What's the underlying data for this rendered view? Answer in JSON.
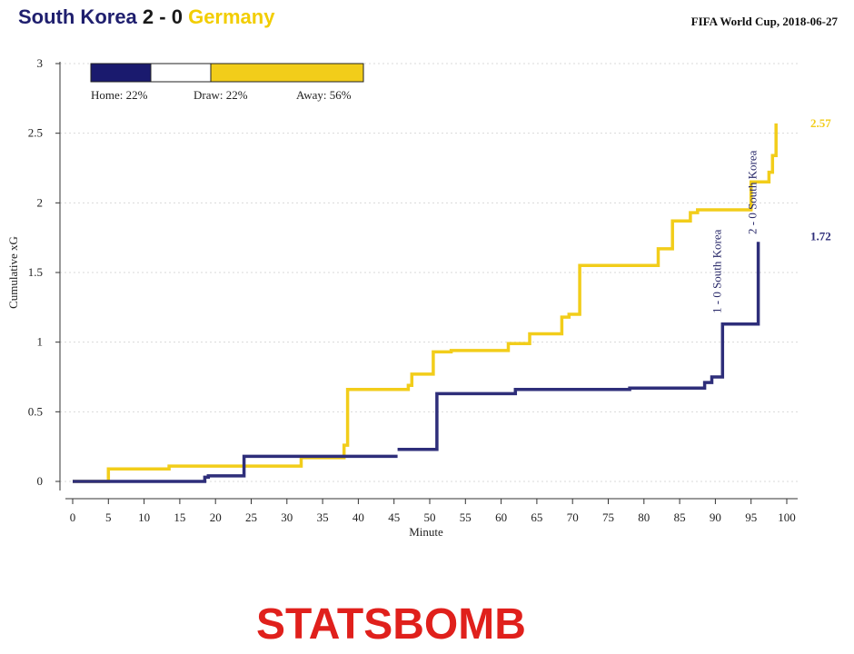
{
  "header": {
    "home_team": "South Korea",
    "score": "2 - 0",
    "away_team": "Germany",
    "competition": "FIFA World Cup, 2018-06-27"
  },
  "colors": {
    "home": "#2e2e7a",
    "away": "#f2cd1a",
    "grid": "#d9d9d9",
    "logo": "#e0201c"
  },
  "legend": {
    "home_label": "Home: 22%",
    "draw_label": "Draw: 22%",
    "away_label": "Away: 56%",
    "home_pct": 22,
    "draw_pct": 22,
    "away_pct": 56
  },
  "chart_data": {
    "type": "line",
    "xlabel": "Minute",
    "ylabel": "Cumulative xG",
    "xlim": [
      0,
      100
    ],
    "ylim": [
      0,
      3
    ],
    "xticks": [
      "0",
      "5",
      "10",
      "15",
      "20",
      "25",
      "30",
      "35",
      "40",
      "45",
      "50",
      "55",
      "60",
      "65",
      "70",
      "75",
      "80",
      "85",
      "90",
      "95",
      "100"
    ],
    "yticks": [
      "0",
      "0.5",
      "1",
      "1.5",
      "2",
      "2.5",
      "3"
    ],
    "grid": "horizontal dotted",
    "series": [
      {
        "name": "South Korea",
        "final_label": "1.72",
        "segments": [
          [
            [
              0,
              0
            ],
            [
              5.5,
              0
            ],
            [
              18.5,
              0
            ],
            [
              18.5,
              0.03
            ],
            [
              19,
              0.03
            ],
            [
              19,
              0.04
            ],
            [
              24,
              0.04
            ],
            [
              24,
              0.18
            ],
            [
              45.5,
              0.18
            ]
          ],
          [
            [
              45.5,
              0.23
            ],
            [
              51,
              0.23
            ],
            [
              51,
              0.63
            ],
            [
              62,
              0.63
            ],
            [
              62,
              0.66
            ],
            [
              78,
              0.66
            ],
            [
              78,
              0.67
            ],
            [
              88.5,
              0.67
            ],
            [
              88.5,
              0.71
            ],
            [
              89.5,
              0.71
            ],
            [
              89.5,
              0.75
            ],
            [
              91,
              0.75
            ],
            [
              91,
              1.13
            ],
            [
              96,
              1.13
            ],
            [
              96,
              1.72
            ]
          ]
        ]
      },
      {
        "name": "Germany",
        "final_label": "2.57",
        "segments": [
          [
            [
              0,
              0
            ],
            [
              5,
              0
            ],
            [
              5,
              0.09
            ],
            [
              13.5,
              0.09
            ],
            [
              13.5,
              0.11
            ],
            [
              32,
              0.11
            ],
            [
              32,
              0.17
            ],
            [
              38,
              0.17
            ],
            [
              38,
              0.26
            ],
            [
              38.5,
              0.26
            ],
            [
              38.5,
              0.66
            ],
            [
              47,
              0.66
            ],
            [
              47,
              0.69
            ],
            [
              47.5,
              0.69
            ],
            [
              47.5,
              0.77
            ],
            [
              50.5,
              0.77
            ],
            [
              50.5,
              0.93
            ],
            [
              53,
              0.93
            ],
            [
              53,
              0.94
            ],
            [
              61,
              0.94
            ],
            [
              61,
              0.99
            ],
            [
              64,
              0.99
            ],
            [
              64,
              1.06
            ],
            [
              68.5,
              1.06
            ],
            [
              68.5,
              1.18
            ],
            [
              69.5,
              1.18
            ],
            [
              69.5,
              1.2
            ],
            [
              71,
              1.2
            ],
            [
              71,
              1.55
            ],
            [
              82,
              1.55
            ],
            [
              82,
              1.67
            ],
            [
              84,
              1.67
            ],
            [
              84,
              1.87
            ],
            [
              86.5,
              1.87
            ],
            [
              86.5,
              1.93
            ],
            [
              87.5,
              1.93
            ],
            [
              87.5,
              1.95
            ],
            [
              95,
              1.95
            ],
            [
              95,
              2.15
            ],
            [
              97.5,
              2.15
            ],
            [
              97.5,
              2.22
            ],
            [
              98,
              2.22
            ],
            [
              98,
              2.34
            ],
            [
              98.5,
              2.34
            ],
            [
              98.5,
              2.57
            ]
          ]
        ]
      }
    ],
    "goals": [
      {
        "minute": 91,
        "label": "1 - 0 South Korea"
      },
      {
        "minute": 96,
        "label": "2 - 0 South Korea"
      }
    ]
  },
  "logo_text": "STATSBOMB"
}
